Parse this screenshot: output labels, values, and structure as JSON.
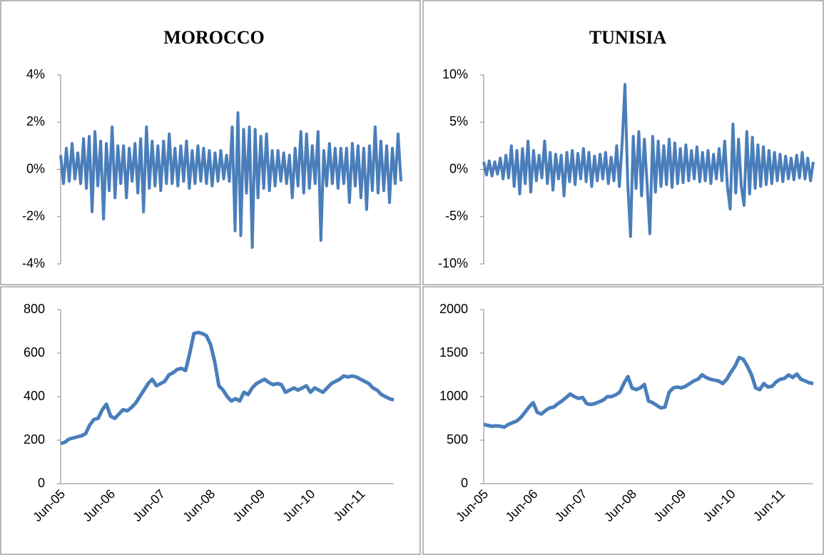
{
  "chart_data": [
    {
      "type": "line",
      "title": "MOROCCO",
      "color": "#4a7ebb",
      "ylim": [
        -4,
        4
      ],
      "yticks": [
        {
          "value": -4,
          "label": "-4%"
        },
        {
          "value": -2,
          "label": "-2%"
        },
        {
          "value": 0,
          "label": "0%"
        },
        {
          "value": 2,
          "label": "2%"
        },
        {
          "value": 4,
          "label": "4%"
        }
      ],
      "values": [
        0.6,
        -0.6,
        0.9,
        -0.5,
        1.1,
        -0.4,
        0.7,
        -0.6,
        1.3,
        -0.8,
        1.4,
        -1.8,
        1.6,
        -0.7,
        1.2,
        -2.1,
        1.1,
        -0.9,
        1.8,
        -1.2,
        1.0,
        -0.6,
        1.0,
        -1.2,
        0.9,
        -0.5,
        1.1,
        -1.0,
        1.3,
        -1.8,
        1.8,
        -0.8,
        1.2,
        -0.7,
        1.0,
        -0.9,
        1.2,
        -0.6,
        1.5,
        -0.6,
        0.9,
        -0.7,
        1.0,
        -0.5,
        1.2,
        -0.8,
        0.8,
        -0.6,
        1.0,
        -0.5,
        0.9,
        -0.6,
        0.8,
        -0.7,
        0.7,
        -0.5,
        0.8,
        -0.4,
        0.6,
        -0.5,
        1.8,
        -2.6,
        2.4,
        -2.8,
        1.7,
        -1.0,
        1.8,
        -3.3,
        1.7,
        -1.2,
        1.4,
        -0.8,
        1.5,
        -0.9,
        0.8,
        -0.7,
        0.8,
        -0.5,
        0.7,
        -0.6,
        0.6,
        -1.2,
        0.9,
        -0.7,
        1.6,
        -1.0,
        1.5,
        -0.8,
        1.0,
        -0.6,
        1.6,
        -3.0,
        0.8,
        -0.7,
        1.1,
        -0.6,
        0.9,
        -0.8,
        0.9,
        -0.6,
        0.9,
        -1.4,
        1.1,
        -0.7,
        1.0,
        -1.2,
        0.9,
        -1.7,
        1.0,
        -0.9,
        1.8,
        -1.0,
        1.2,
        -0.9,
        1.0,
        -1.4,
        0.9,
        -0.6,
        1.5,
        -0.5
      ]
    },
    {
      "type": "line",
      "title": "TUNISIA",
      "color": "#4a7ebb",
      "ylim": [
        -10,
        10
      ],
      "yticks": [
        {
          "value": -10,
          "label": "-10%"
        },
        {
          "value": -5,
          "label": "-5%"
        },
        {
          "value": 0,
          "label": "0%"
        },
        {
          "value": 5,
          "label": "5%"
        },
        {
          "value": 10,
          "label": "10%"
        }
      ],
      "values": [
        0.8,
        -0.6,
        0.9,
        -0.7,
        0.8,
        -0.5,
        1.2,
        -1.0,
        1.5,
        -0.9,
        2.5,
        -1.8,
        2.0,
        -2.6,
        2.2,
        -1.5,
        3.0,
        -2.4,
        2.0,
        -1.2,
        1.5,
        -0.9,
        3.0,
        -1.5,
        1.8,
        -2.2,
        1.6,
        -1.0,
        1.5,
        -2.8,
        1.8,
        -1.3,
        2.0,
        -1.6,
        1.7,
        -1.0,
        2.2,
        -1.3,
        1.8,
        -1.8,
        1.4,
        -1.2,
        1.6,
        -1.0,
        1.8,
        -1.5,
        1.3,
        -1.2,
        2.5,
        -1.8,
        2.8,
        9.0,
        -1.5,
        -7.1,
        3.5,
        -2.0,
        4.0,
        -2.8,
        3.2,
        -1.6,
        -6.8,
        3.5,
        -2.4,
        3.0,
        -1.8,
        2.5,
        -1.6,
        3.2,
        -1.9,
        2.8,
        -1.5,
        2.2,
        -1.4,
        2.6,
        -1.2,
        2.0,
        -1.0,
        2.4,
        -1.3,
        1.8,
        -1.2,
        2.0,
        -1.5,
        1.6,
        -1.0,
        2.2,
        -1.2,
        3.0,
        -1.8,
        -4.2,
        4.8,
        -2.5,
        3.2,
        -1.8,
        -3.8,
        4.0,
        -2.6,
        3.4,
        -2.0,
        2.6,
        -1.8,
        2.4,
        -1.6,
        2.0,
        -1.5,
        1.8,
        -1.2,
        1.6,
        -1.3,
        1.4,
        -1.0,
        1.2,
        -1.1,
        1.5,
        -0.9,
        1.8,
        -1.0,
        1.2,
        -1.2,
        0.8
      ]
    },
    {
      "type": "line",
      "color": "#4a7ebb",
      "ylim": [
        0,
        800
      ],
      "yticks": [
        0,
        200,
        400,
        600,
        800
      ],
      "categories": [
        "Jun-05",
        null,
        null,
        null,
        null,
        null,
        null,
        null,
        null,
        null,
        null,
        null,
        "Jun-06",
        null,
        null,
        null,
        null,
        null,
        null,
        null,
        null,
        null,
        null,
        null,
        "Jun-07",
        null,
        null,
        null,
        null,
        null,
        null,
        null,
        null,
        null,
        null,
        null,
        "Jun-08",
        null,
        null,
        null,
        null,
        null,
        null,
        null,
        null,
        null,
        null,
        null,
        "Jun-09",
        null,
        null,
        null,
        null,
        null,
        null,
        null,
        null,
        null,
        null,
        null,
        "Jun-10",
        null,
        null,
        null,
        null,
        null,
        null,
        null,
        null,
        null,
        null,
        null,
        "Jun-11",
        null,
        null,
        null,
        null,
        null,
        null,
        null,
        null
      ],
      "values": [
        185,
        190,
        205,
        210,
        215,
        220,
        230,
        270,
        295,
        300,
        340,
        365,
        310,
        300,
        320,
        340,
        335,
        350,
        370,
        400,
        430,
        460,
        480,
        450,
        460,
        470,
        500,
        510,
        525,
        530,
        520,
        600,
        690,
        695,
        690,
        680,
        640,
        560,
        450,
        430,
        400,
        380,
        390,
        380,
        420,
        410,
        440,
        460,
        470,
        480,
        465,
        455,
        460,
        455,
        420,
        430,
        440,
        430,
        440,
        450,
        420,
        440,
        430,
        420,
        440,
        460,
        470,
        480,
        495,
        490,
        495,
        490,
        480,
        470,
        460,
        440,
        430,
        410,
        400,
        390,
        385
      ]
    },
    {
      "type": "line",
      "color": "#4a7ebb",
      "ylim": [
        0,
        2000
      ],
      "yticks": [
        0,
        500,
        1000,
        1500,
        2000
      ],
      "categories": [
        "Jun-05",
        null,
        null,
        null,
        null,
        null,
        null,
        null,
        null,
        null,
        null,
        null,
        "Jun-06",
        null,
        null,
        null,
        null,
        null,
        null,
        null,
        null,
        null,
        null,
        null,
        "Jun-07",
        null,
        null,
        null,
        null,
        null,
        null,
        null,
        null,
        null,
        null,
        null,
        "Jun-08",
        null,
        null,
        null,
        null,
        null,
        null,
        null,
        null,
        null,
        null,
        null,
        "Jun-09",
        null,
        null,
        null,
        null,
        null,
        null,
        null,
        null,
        null,
        null,
        null,
        "Jun-10",
        null,
        null,
        null,
        null,
        null,
        null,
        null,
        null,
        null,
        null,
        null,
        "Jun-11",
        null,
        null,
        null,
        null,
        null,
        null,
        null,
        null
      ],
      "values": [
        680,
        670,
        660,
        665,
        660,
        650,
        680,
        700,
        720,
        760,
        820,
        880,
        930,
        820,
        800,
        840,
        870,
        880,
        920,
        950,
        990,
        1030,
        1000,
        980,
        990,
        920,
        910,
        920,
        940,
        960,
        1000,
        1000,
        1020,
        1050,
        1150,
        1230,
        1100,
        1080,
        1100,
        1140,
        950,
        930,
        900,
        870,
        880,
        1050,
        1100,
        1110,
        1100,
        1120,
        1150,
        1180,
        1200,
        1250,
        1220,
        1200,
        1190,
        1180,
        1150,
        1200,
        1280,
        1350,
        1450,
        1430,
        1350,
        1250,
        1100,
        1080,
        1150,
        1110,
        1120,
        1170,
        1200,
        1210,
        1250,
        1220,
        1260,
        1200,
        1180,
        1160,
        1150
      ]
    }
  ]
}
